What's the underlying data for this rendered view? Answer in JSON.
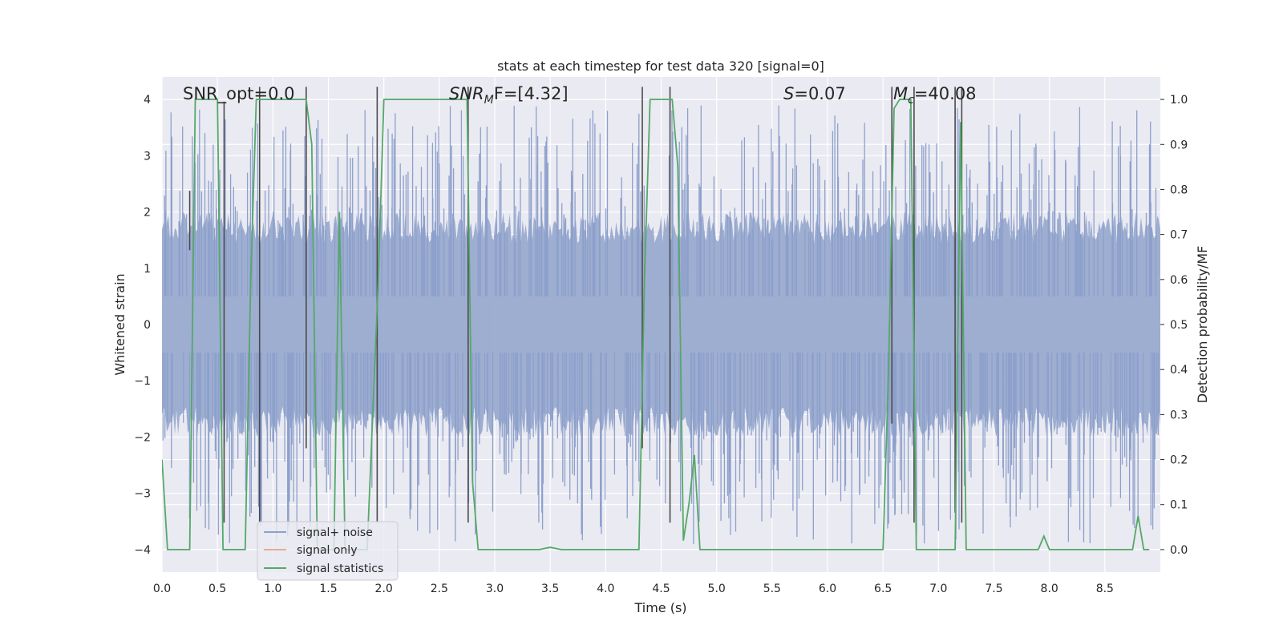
{
  "chart_data": {
    "type": "line",
    "title": "stats at each timestep for test data 320 [signal=0]",
    "xlabel": "Time (s)",
    "ylabel": "Whitened strain",
    "y2label": "Detection probability/MF",
    "xlim": [
      0.0,
      9.0
    ],
    "ylim": [
      -4.4,
      4.4
    ],
    "y2lim": [
      -0.05,
      1.05
    ],
    "xticks": [
      "0.0",
      "0.5",
      "1.0",
      "1.5",
      "2.0",
      "2.5",
      "3.0",
      "3.5",
      "4.0",
      "4.5",
      "5.0",
      "5.5",
      "6.0",
      "6.5",
      "7.0",
      "7.5",
      "8.0",
      "8.5"
    ],
    "yticks": [
      "4",
      "3",
      "2",
      "1",
      "0",
      "−1",
      "−2",
      "−3",
      "−4"
    ],
    "y2ticks": [
      "1.0",
      "0.9",
      "0.8",
      "0.7",
      "0.6",
      "0.5",
      "0.4",
      "0.3",
      "0.2",
      "0.1",
      "0.0"
    ],
    "legend_position": "lower-left",
    "grid": true,
    "series": [
      {
        "name": "signal+ noise",
        "color": "#4c72b0",
        "axis": "left",
        "description": "dense whitened noise, roughly ±1.6 with spikes to ±3.9"
      },
      {
        "name": "signal only",
        "color": "#dd8452",
        "axis": "left",
        "values": []
      },
      {
        "name": "signal statistics",
        "color": "#55a868",
        "axis": "right",
        "x": [
          0.0,
          0.05,
          0.1,
          0.15,
          0.2,
          0.25,
          0.3,
          0.35,
          0.4,
          0.45,
          0.5,
          0.55,
          0.6,
          0.65,
          0.7,
          0.75,
          0.8,
          0.85,
          0.9,
          0.95,
          1.0,
          1.05,
          1.1,
          1.15,
          1.2,
          1.25,
          1.3,
          1.35,
          1.4,
          1.45,
          1.5,
          1.55,
          1.6,
          1.65,
          1.7,
          1.75,
          1.8,
          1.85,
          1.9,
          1.95,
          2.0,
          2.05,
          2.1,
          2.2,
          2.4,
          2.6,
          2.7,
          2.75,
          2.8,
          2.85,
          2.9,
          3.0,
          3.2,
          3.4,
          3.5,
          3.6,
          3.8,
          4.0,
          4.2,
          4.3,
          4.35,
          4.4,
          4.45,
          4.5,
          4.55,
          4.6,
          4.65,
          4.7,
          4.75,
          4.8,
          4.85,
          4.9,
          5.0,
          5.5,
          6.0,
          6.5,
          6.55,
          6.6,
          6.65,
          6.7,
          6.75,
          6.8,
          6.85,
          6.9,
          7.0,
          7.1,
          7.15,
          7.2,
          7.25,
          7.3,
          7.5,
          7.7,
          7.85,
          7.9,
          7.95,
          8.0,
          8.2,
          8.5,
          8.75,
          8.8,
          8.85,
          8.9
        ],
        "values": [
          0.2,
          0.0,
          0.0,
          0.0,
          0.0,
          0.0,
          1.0,
          1.0,
          1.0,
          1.0,
          1.0,
          0.0,
          0.0,
          0.0,
          0.0,
          0.0,
          0.6,
          1.0,
          1.0,
          1.0,
          1.0,
          1.0,
          1.0,
          1.0,
          1.0,
          1.0,
          1.0,
          0.9,
          0.0,
          0.0,
          0.0,
          0.0,
          0.75,
          0.0,
          0.0,
          0.0,
          0.0,
          0.0,
          0.3,
          0.6,
          1.0,
          1.0,
          1.0,
          1.0,
          1.0,
          1.0,
          1.0,
          1.0,
          0.15,
          0.0,
          0.0,
          0.0,
          0.0,
          0.0,
          0.005,
          0.0,
          0.0,
          0.0,
          0.0,
          0.0,
          0.6,
          1.0,
          1.0,
          1.0,
          1.0,
          1.0,
          0.85,
          0.02,
          0.1,
          0.21,
          0.0,
          0.0,
          0.0,
          0.0,
          0.0,
          0.0,
          0.4,
          0.98,
          1.0,
          1.0,
          1.0,
          0.0,
          0.0,
          0.0,
          0.0,
          0.0,
          0.0,
          0.95,
          0.0,
          0.0,
          0.0,
          0.0,
          0.0,
          0.0,
          0.03,
          0.0,
          0.0,
          0.0,
          0.0,
          0.075,
          0.0,
          0.0
        ]
      }
    ],
    "markers": {
      "color": "#4a4a4a",
      "segments": [
        {
          "t": 0.25,
          "top": 0.23,
          "bottom": 0.35
        },
        {
          "t": 0.56,
          "top": 0.05,
          "bottom": 0.9
        },
        {
          "t": 0.88,
          "top": 0.02,
          "bottom": 0.9
        },
        {
          "t": 1.3,
          "top": 0.02,
          "bottom": 0.75
        },
        {
          "t": 1.94,
          "top": 0.02,
          "bottom": 0.9
        },
        {
          "t": 2.76,
          "top": 0.02,
          "bottom": 0.9
        },
        {
          "t": 4.33,
          "top": 0.02,
          "bottom": 0.75
        },
        {
          "t": 4.58,
          "top": 0.02,
          "bottom": 0.9
        },
        {
          "t": 6.58,
          "top": 0.02,
          "bottom": 0.7
        },
        {
          "t": 6.78,
          "top": 0.02,
          "bottom": 0.9
        },
        {
          "t": 7.15,
          "top": 0.02,
          "bottom": 0.88
        },
        {
          "t": 7.21,
          "top": 0.02,
          "bottom": 0.9
        }
      ]
    },
    "annotations": [
      {
        "text": "SNR_opt=0.0",
        "x": 0.2
      },
      {
        "main": "SNR",
        "sub": "M",
        "rest": "F=[4.32]",
        "x": 2.6
      },
      {
        "main": "S",
        "rest": "=0.07",
        "x": 5.6
      },
      {
        "main": "M",
        "sub": "c",
        "rest": "=40.08",
        "x": 6.6
      }
    ]
  }
}
